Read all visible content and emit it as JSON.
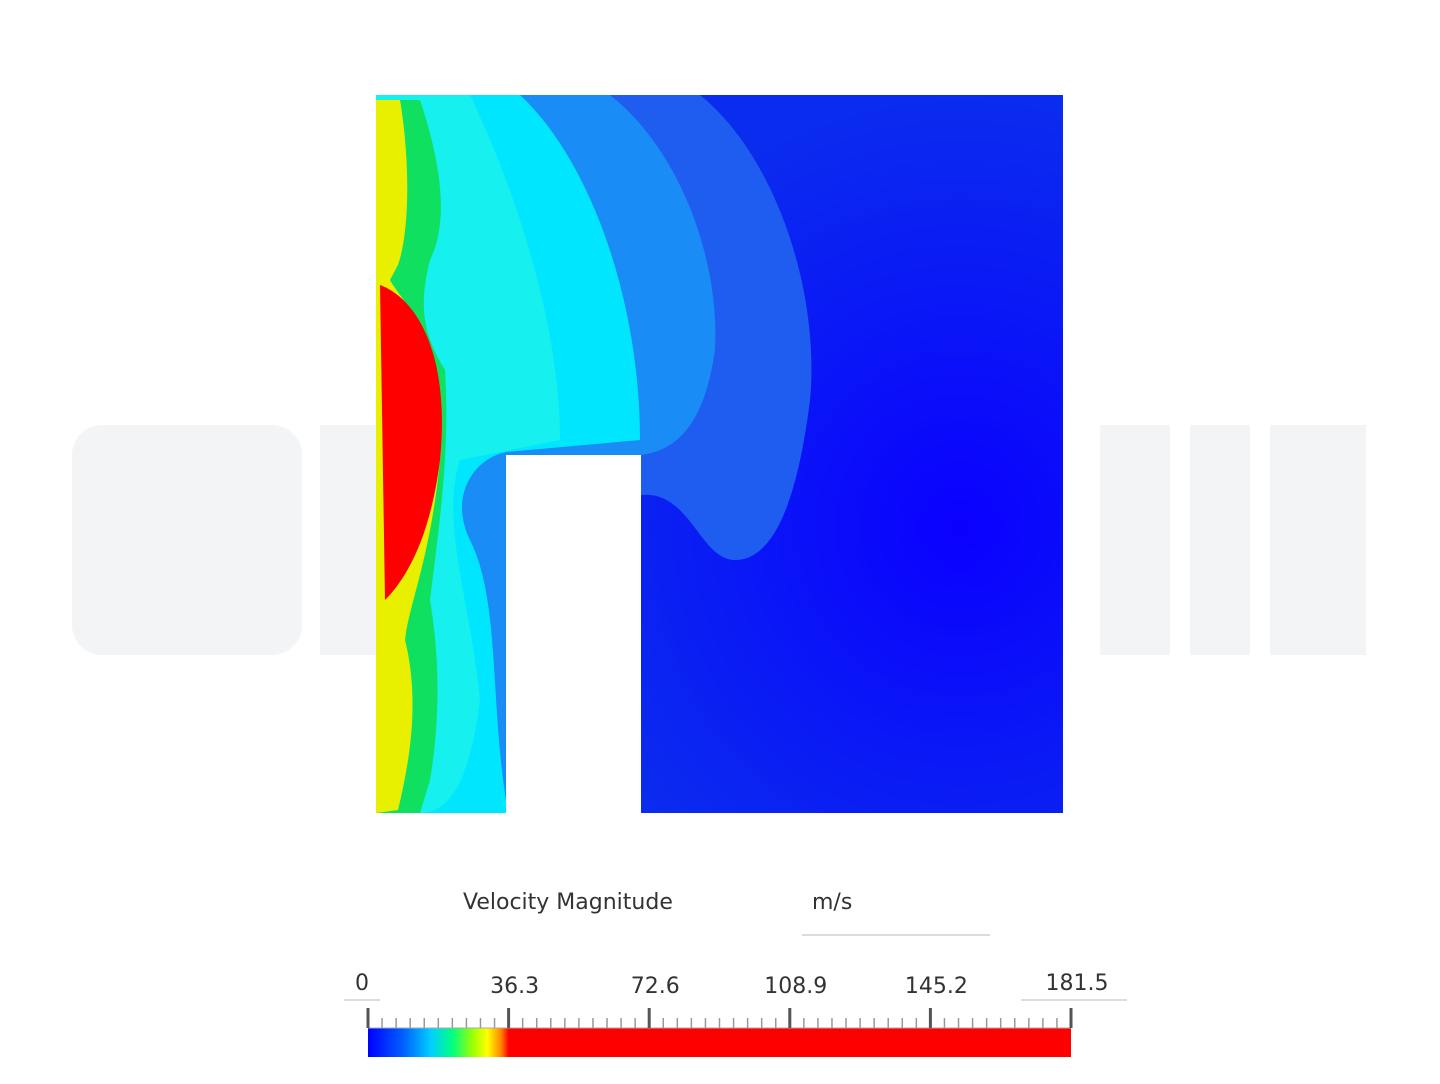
{
  "legend": {
    "title": "Velocity Magnitude",
    "unit": "m/s",
    "range": [
      0,
      181.5
    ],
    "ticks": [
      0,
      36.3,
      72.6,
      108.9,
      145.2,
      181.5
    ]
  }
}
